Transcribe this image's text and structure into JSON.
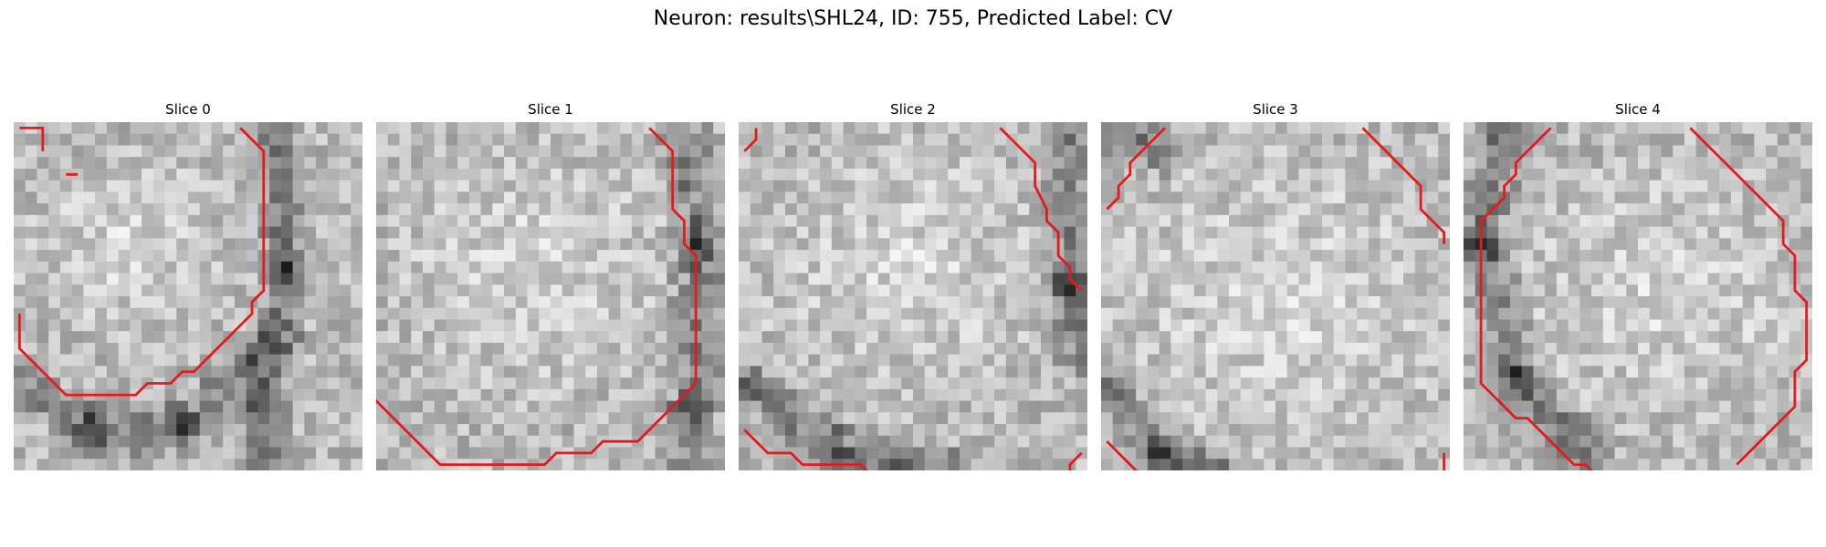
{
  "figure": {
    "title": "Neuron: results\\SHL24, ID: 755, Predicted Label: CV"
  },
  "colors": {
    "contour": "#e41a1c",
    "background": "#ffffff"
  },
  "panels": [
    {
      "title": "Slice 0"
    },
    {
      "title": "Slice 1"
    },
    {
      "title": "Slice 2"
    },
    {
      "title": "Slice 3"
    },
    {
      "title": "Slice 4"
    }
  ]
}
